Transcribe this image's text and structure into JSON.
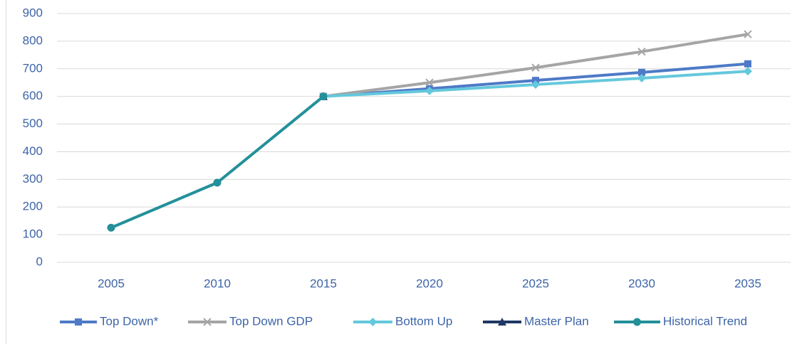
{
  "chart_data": {
    "type": "line",
    "categories": [
      "2005",
      "2010",
      "2015",
      "2020",
      "2025",
      "2030",
      "2035"
    ],
    "series": [
      {
        "name": "Top Down*",
        "color": "#4e7ac7",
        "marker": "square",
        "values": [
          null,
          null,
          600,
          628,
          658,
          687,
          718
        ]
      },
      {
        "name": "Top Down GDP",
        "color": "#a5a5a5",
        "marker": "x",
        "values": [
          null,
          null,
          600,
          650,
          704,
          762,
          825
        ]
      },
      {
        "name": "Bottom Up",
        "color": "#64c8dc",
        "marker": "diamond",
        "values": [
          null,
          null,
          600,
          620,
          643,
          666,
          691
        ]
      },
      {
        "name": "Master Plan",
        "color": "#1f3864",
        "marker": "triangle",
        "values": [
          null,
          null,
          600,
          null,
          null,
          null,
          null
        ]
      },
      {
        "name": "Historical Trend",
        "color": "#23909a",
        "marker": "circle",
        "values": [
          125,
          288,
          600,
          null,
          null,
          null,
          null
        ]
      }
    ],
    "ylim": [
      0,
      900
    ],
    "yticks": [
      0,
      100,
      200,
      300,
      400,
      500,
      600,
      700,
      800,
      900
    ],
    "grid": true,
    "legend": "bottom"
  }
}
